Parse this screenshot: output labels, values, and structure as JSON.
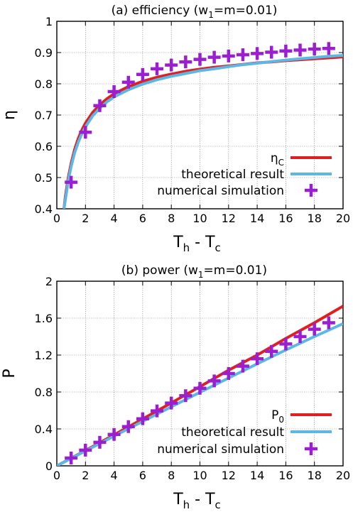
{
  "chart_data": [
    {
      "type": "line",
      "title": "(a)  efficiency  (w",
      "title_sub": "1",
      "title_tail": "=m=0.01)",
      "xlabel_main": "T",
      "xlabel_sub1": "h",
      "xlabel_mid": " - T",
      "xlabel_sub2": "c",
      "ylabel": "η",
      "xlim": [
        0,
        20
      ],
      "ylim": [
        0.4,
        1.0
      ],
      "xticks": [
        "0",
        "2",
        "4",
        "6",
        "8",
        "10",
        "12",
        "14",
        "16",
        "18",
        "20"
      ],
      "yticks": [
        "0.4",
        "0.5",
        "0.6",
        "0.7",
        "0.8",
        "0.9",
        "1"
      ],
      "grid": true,
      "legend_position": "center-right",
      "legend": {
        "ideal_main": "η",
        "ideal_sub": "C",
        "theory": "theoretical result",
        "sim": "numerical simulation"
      },
      "colors": {
        "ideal": "#e02020",
        "theory": "#5bb8e6",
        "sim": "#9b1fd1"
      },
      "series": [
        {
          "key": "ideal",
          "style": "line",
          "x": [
            0.5,
            0.6,
            0.8,
            1,
            1.25,
            1.5,
            1.75,
            2,
            2.5,
            3,
            3.5,
            4,
            5,
            6,
            7,
            8,
            9,
            10,
            11,
            12,
            13,
            14,
            15,
            16,
            17,
            18,
            19,
            20
          ],
          "y": [
            0.4,
            0.44,
            0.5,
            0.545,
            0.591,
            0.625,
            0.652,
            0.674,
            0.708,
            0.733,
            0.752,
            0.768,
            0.791,
            0.808,
            0.821,
            0.831,
            0.84,
            0.847,
            0.853,
            0.857,
            0.862,
            0.867,
            0.87,
            0.874,
            0.877,
            0.88,
            0.883,
            0.886
          ]
        },
        {
          "key": "theory",
          "style": "line",
          "x": [
            0.5,
            0.6,
            0.8,
            1,
            1.25,
            1.5,
            1.75,
            2,
            2.5,
            3,
            3.5,
            4,
            5,
            6,
            7,
            8,
            9,
            10,
            11,
            12,
            13,
            14,
            15,
            16,
            17,
            18,
            19,
            20
          ],
          "y": [
            0.4,
            0.43,
            0.49,
            0.535,
            0.58,
            0.613,
            0.64,
            0.662,
            0.697,
            0.722,
            0.742,
            0.758,
            0.781,
            0.799,
            0.813,
            0.824,
            0.833,
            0.842,
            0.848,
            0.855,
            0.861,
            0.866,
            0.871,
            0.876,
            0.88,
            0.884,
            0.888,
            0.891
          ]
        },
        {
          "key": "sim",
          "style": "marker",
          "x": [
            1,
            2,
            3,
            4,
            5,
            6,
            7,
            8,
            9,
            10,
            11,
            12,
            13,
            14,
            15,
            16,
            17,
            18,
            19
          ],
          "y": [
            0.485,
            0.645,
            0.73,
            0.775,
            0.805,
            0.83,
            0.848,
            0.86,
            0.87,
            0.878,
            0.885,
            0.889,
            0.893,
            0.897,
            0.901,
            0.905,
            0.908,
            0.911,
            0.913
          ]
        }
      ]
    },
    {
      "type": "line",
      "title": "(b) power  (w",
      "title_sub": "1",
      "title_tail": "=m=0.01)",
      "xlabel_main": "T",
      "xlabel_sub1": "h",
      "xlabel_mid": " - T",
      "xlabel_sub2": "c",
      "ylabel": "P",
      "xlim": [
        0,
        20
      ],
      "ylim": [
        0,
        2
      ],
      "xticks": [
        "0",
        "2",
        "4",
        "6",
        "8",
        "10",
        "12",
        "14",
        "16",
        "18",
        "20"
      ],
      "yticks": [
        "0",
        "0.4",
        "0.8",
        "1.2",
        "1.6",
        "2"
      ],
      "grid": true,
      "legend_position": "bottom-right",
      "legend": {
        "ideal_main": "P",
        "ideal_sub": "0",
        "theory": "theoretical result",
        "sim": "numerical simulation"
      },
      "colors": {
        "ideal": "#e02020",
        "theory": "#5bb8e6",
        "sim": "#9b1fd1"
      },
      "series": [
        {
          "key": "ideal",
          "style": "line",
          "x": [
            0,
            2,
            4,
            6,
            8,
            10,
            12,
            14,
            16,
            18,
            20
          ],
          "y": [
            0,
            0.166,
            0.336,
            0.508,
            0.682,
            0.858,
            1.036,
            1.2,
            1.38,
            1.55,
            1.73
          ]
        },
        {
          "key": "theory",
          "style": "line",
          "x": [
            0,
            2,
            4,
            6,
            8,
            10,
            12,
            14,
            16,
            18,
            20
          ],
          "y": [
            0,
            0.161,
            0.322,
            0.482,
            0.64,
            0.796,
            0.951,
            1.105,
            1.255,
            1.4,
            1.54
          ]
        },
        {
          "key": "sim",
          "style": "marker",
          "x": [
            1,
            2,
            3,
            4,
            5,
            6,
            7,
            8,
            9,
            10,
            11,
            12,
            13,
            14,
            15,
            16,
            17,
            18,
            19
          ],
          "y": [
            0.085,
            0.17,
            0.255,
            0.34,
            0.425,
            0.51,
            0.595,
            0.68,
            0.76,
            0.84,
            0.92,
            1.0,
            1.08,
            1.16,
            1.24,
            1.32,
            1.4,
            1.48,
            1.55
          ]
        }
      ]
    }
  ]
}
